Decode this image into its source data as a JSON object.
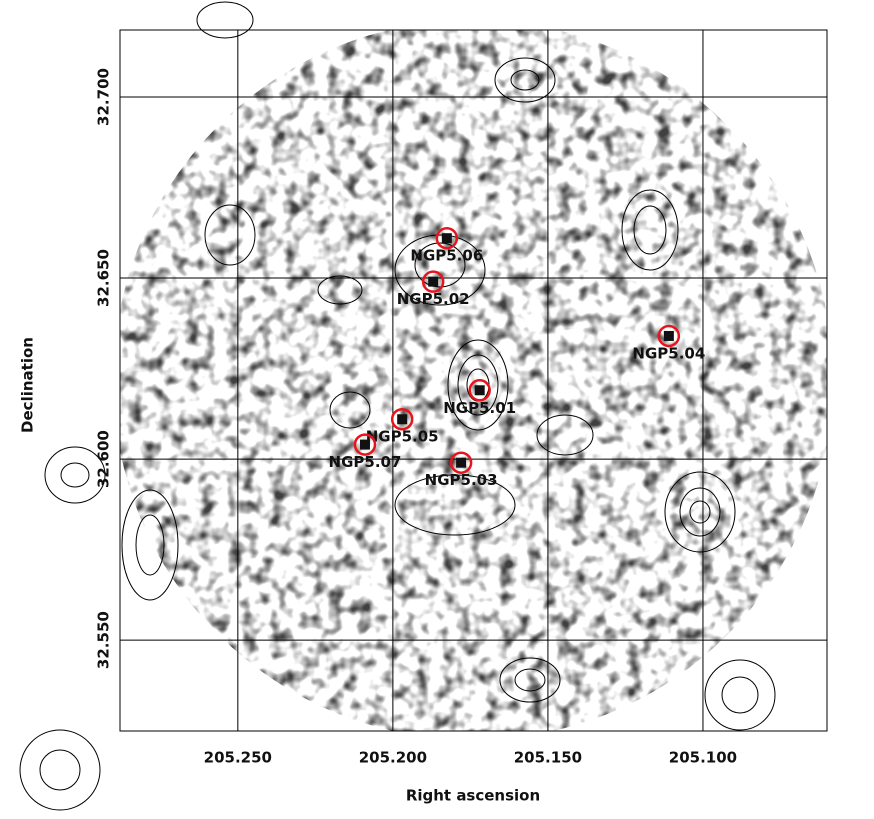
{
  "chart_data": {
    "type": "scatter",
    "x_label": "Right ascension",
    "y_label": "Declination",
    "xlim": [
      205.288,
      205.06
    ],
    "ylim": [
      32.5249,
      32.7185
    ],
    "xticks": [
      {
        "value": 205.25,
        "label": "205.250"
      },
      {
        "value": 205.2,
        "label": "205.200"
      },
      {
        "value": 205.15,
        "label": "205.150"
      },
      {
        "value": 205.1,
        "label": "205.100"
      }
    ],
    "yticks": [
      {
        "value": 32.55,
        "label": "32.550"
      },
      {
        "value": 32.6,
        "label": "32.600"
      },
      {
        "value": 32.65,
        "label": "32.650"
      },
      {
        "value": 32.7,
        "label": "32.700"
      }
    ],
    "grid": true,
    "color": "#e8141c",
    "points": [
      {
        "label": "NGP5.06",
        "x": 205.1826,
        "y": 32.661
      },
      {
        "label": "NGP5.02",
        "x": 205.187,
        "y": 32.649
      },
      {
        "label": "NGP5.04",
        "x": 205.111,
        "y": 32.634
      },
      {
        "label": "NGP5.01",
        "x": 205.172,
        "y": 32.619
      },
      {
        "label": "NGP5.05",
        "x": 205.197,
        "y": 32.611
      },
      {
        "label": "NGP5.07",
        "x": 205.209,
        "y": 32.604
      },
      {
        "label": "NGP5.03",
        "x": 205.178,
        "y": 32.599
      }
    ]
  }
}
